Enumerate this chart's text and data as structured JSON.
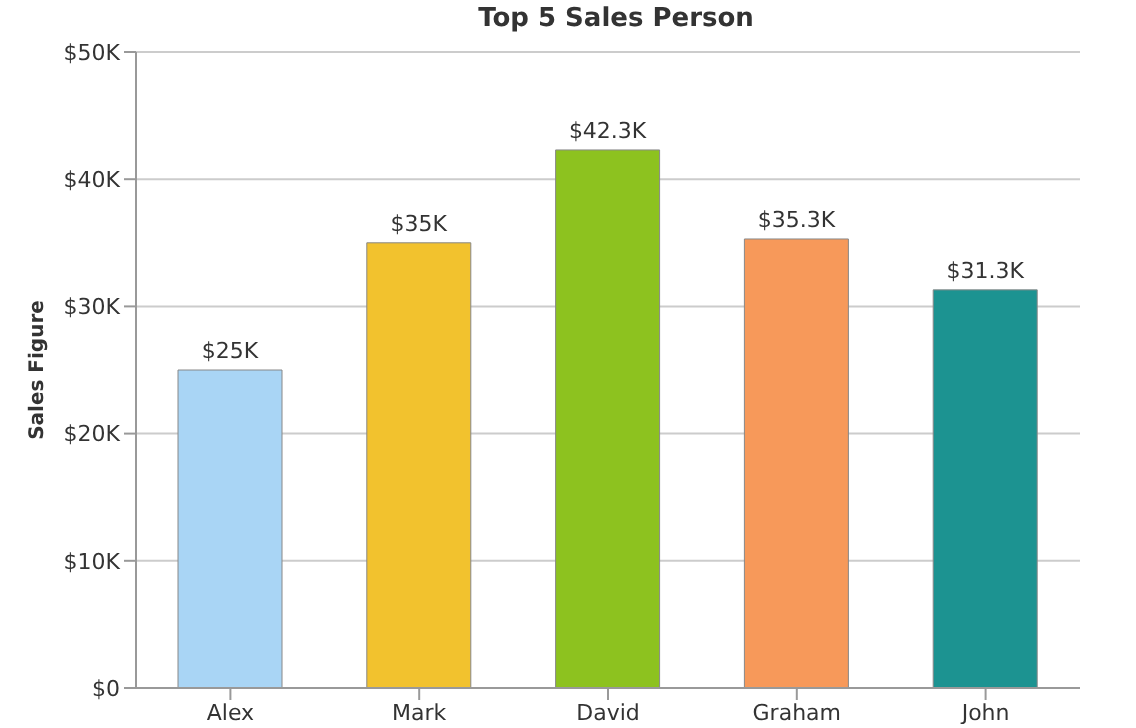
{
  "chart_data": {
    "type": "bar",
    "title": "Top 5 Sales Person",
    "ylabel": "Sales Figure",
    "categories": [
      "Alex",
      "Mark",
      "David",
      "Graham",
      "John"
    ],
    "values": [
      25000,
      35000,
      42300,
      35300,
      31300
    ],
    "colors": [
      "#a9d5f5",
      "#f2c22e",
      "#8dc21f",
      "#f7995a",
      "#1c9391"
    ],
    "value_labels": [
      "$25K",
      "$35K",
      "$42.3K",
      "$35.3K",
      "$31.3K"
    ],
    "ylim": [
      0,
      50000
    ],
    "yticks": [
      {
        "value": 0,
        "label": "$0"
      },
      {
        "value": 10000,
        "label": "$10K"
      },
      {
        "value": 20000,
        "label": "$20K"
      },
      {
        "value": 30000,
        "label": "$30K"
      },
      {
        "value": 40000,
        "label": "$40K"
      },
      {
        "value": 50000,
        "label": "$50K"
      }
    ],
    "grid": "y"
  }
}
